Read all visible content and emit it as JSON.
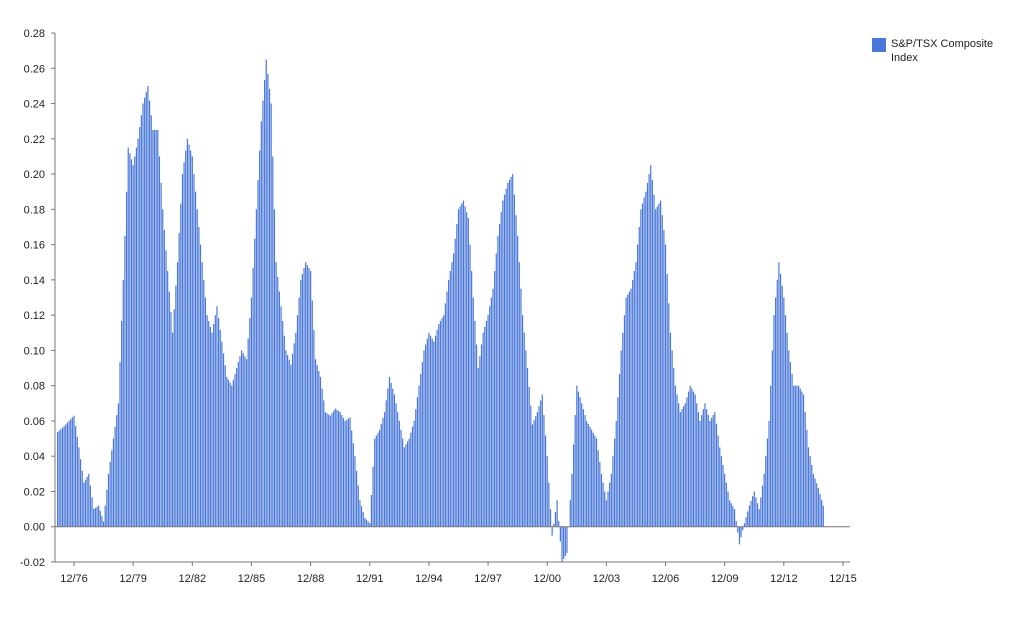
{
  "chart_data": {
    "type": "bar",
    "title": "",
    "xlabel": "",
    "ylabel": "",
    "ylim": [
      -0.02,
      0.28
    ],
    "yticks": [
      "0.28",
      "0.26",
      "0.24",
      "0.22",
      "0.20",
      "0.18",
      "0.16",
      "0.14",
      "0.12",
      "0.10",
      "0.08",
      "0.06",
      "0.04",
      "0.02",
      "0.00",
      "-0.02"
    ],
    "ytick_values": [
      0.28,
      0.26,
      0.24,
      0.22,
      0.2,
      0.18,
      0.16,
      0.14,
      0.12,
      0.1,
      0.08,
      0.06,
      0.04,
      0.02,
      0.0,
      -0.02
    ],
    "xticks": [
      "12/76",
      "12/79",
      "12/82",
      "12/85",
      "12/88",
      "12/91",
      "12/94",
      "12/97",
      "12/00",
      "12/03",
      "12/06",
      "12/09",
      "12/12",
      "12/15"
    ],
    "grid": false,
    "legend_position": "top-right",
    "series": [
      {
        "name": "S&P/TSX Composite Index",
        "color": "#4a78d8",
        "anchors": [
          [
            "1975-12",
            0.052
          ],
          [
            "1976-06",
            0.057
          ],
          [
            "1976-12",
            0.063
          ],
          [
            "1977-03",
            0.045
          ],
          [
            "1977-06",
            0.025
          ],
          [
            "1977-09",
            0.03
          ],
          [
            "1977-12",
            0.01
          ],
          [
            "1978-03",
            0.012
          ],
          [
            "1978-06",
            0.003
          ],
          [
            "1978-09",
            0.03
          ],
          [
            "1978-12",
            0.05
          ],
          [
            "1979-03",
            0.07
          ],
          [
            "1979-06",
            0.14
          ],
          [
            "1979-09",
            0.215
          ],
          [
            "1979-12",
            0.205
          ],
          [
            "1980-03",
            0.22
          ],
          [
            "1980-06",
            0.24
          ],
          [
            "1980-09",
            0.25
          ],
          [
            "1980-12",
            0.225
          ],
          [
            "1981-03",
            0.225
          ],
          [
            "1981-06",
            0.18
          ],
          [
            "1981-09",
            0.145
          ],
          [
            "1981-12",
            0.11
          ],
          [
            "1982-03",
            0.15
          ],
          [
            "1982-06",
            0.2
          ],
          [
            "1982-09",
            0.22
          ],
          [
            "1982-12",
            0.21
          ],
          [
            "1983-03",
            0.18
          ],
          [
            "1983-06",
            0.15
          ],
          [
            "1983-09",
            0.12
          ],
          [
            "1983-12",
            0.11
          ],
          [
            "1984-03",
            0.125
          ],
          [
            "1984-06",
            0.105
          ],
          [
            "1984-09",
            0.085
          ],
          [
            "1984-12",
            0.08
          ],
          [
            "1985-03",
            0.09
          ],
          [
            "1985-06",
            0.1
          ],
          [
            "1985-09",
            0.095
          ],
          [
            "1985-12",
            0.13
          ],
          [
            "1986-03",
            0.18
          ],
          [
            "1986-06",
            0.23
          ],
          [
            "1986-09",
            0.265
          ],
          [
            "1986-12",
            0.24
          ],
          [
            "1987-03",
            0.15
          ],
          [
            "1987-06",
            0.125
          ],
          [
            "1987-09",
            0.1
          ],
          [
            "1987-12",
            0.092
          ],
          [
            "1988-03",
            0.11
          ],
          [
            "1988-06",
            0.14
          ],
          [
            "1988-09",
            0.15
          ],
          [
            "1988-12",
            0.145
          ],
          [
            "1989-03",
            0.095
          ],
          [
            "1989-06",
            0.085
          ],
          [
            "1989-09",
            0.065
          ],
          [
            "1989-12",
            0.063
          ],
          [
            "1990-03",
            0.067
          ],
          [
            "1990-06",
            0.065
          ],
          [
            "1990-09",
            0.06
          ],
          [
            "1990-12",
            0.062
          ],
          [
            "1991-03",
            0.04
          ],
          [
            "1991-06",
            0.015
          ],
          [
            "1991-09",
            0.005
          ],
          [
            "1991-12",
            0.002
          ],
          [
            "1992-03",
            0.05
          ],
          [
            "1992-06",
            0.055
          ],
          [
            "1992-09",
            0.065
          ],
          [
            "1992-12",
            0.085
          ],
          [
            "1993-03",
            0.075
          ],
          [
            "1993-06",
            0.06
          ],
          [
            "1993-09",
            0.045
          ],
          [
            "1993-12",
            0.05
          ],
          [
            "1994-03",
            0.06
          ],
          [
            "1994-06",
            0.08
          ],
          [
            "1994-09",
            0.1
          ],
          [
            "1994-12",
            0.11
          ],
          [
            "1995-03",
            0.105
          ],
          [
            "1995-06",
            0.115
          ],
          [
            "1995-09",
            0.12
          ],
          [
            "1995-12",
            0.14
          ],
          [
            "1996-03",
            0.155
          ],
          [
            "1996-06",
            0.18
          ],
          [
            "1996-09",
            0.185
          ],
          [
            "1996-12",
            0.175
          ],
          [
            "1997-03",
            0.13
          ],
          [
            "1997-06",
            0.09
          ],
          [
            "1997-09",
            0.11
          ],
          [
            "1997-12",
            0.12
          ],
          [
            "1998-03",
            0.135
          ],
          [
            "1998-06",
            0.165
          ],
          [
            "1998-09",
            0.185
          ],
          [
            "1998-12",
            0.195
          ],
          [
            "1999-03",
            0.2
          ],
          [
            "1999-06",
            0.165
          ],
          [
            "1999-09",
            0.12
          ],
          [
            "1999-12",
            0.09
          ],
          [
            "2000-03",
            0.058
          ],
          [
            "2000-06",
            0.065
          ],
          [
            "2000-09",
            0.075
          ],
          [
            "2000-12",
            0.04
          ],
          [
            "2001-03",
            -0.005
          ],
          [
            "2001-06",
            0.015
          ],
          [
            "2001-09",
            -0.02
          ],
          [
            "2001-12",
            -0.015
          ],
          [
            "2002-03",
            0.03
          ],
          [
            "2002-06",
            0.08
          ],
          [
            "2002-09",
            0.07
          ],
          [
            "2002-12",
            0.06
          ],
          [
            "2003-03",
            0.055
          ],
          [
            "2003-06",
            0.05
          ],
          [
            "2003-09",
            0.03
          ],
          [
            "2003-12",
            0.015
          ],
          [
            "2004-03",
            0.03
          ],
          [
            "2004-06",
            0.06
          ],
          [
            "2004-09",
            0.1
          ],
          [
            "2004-12",
            0.13
          ],
          [
            "2005-03",
            0.135
          ],
          [
            "2005-06",
            0.15
          ],
          [
            "2005-09",
            0.18
          ],
          [
            "2005-12",
            0.19
          ],
          [
            "2006-03",
            0.205
          ],
          [
            "2006-06",
            0.18
          ],
          [
            "2006-09",
            0.185
          ],
          [
            "2006-12",
            0.16
          ],
          [
            "2007-03",
            0.11
          ],
          [
            "2007-06",
            0.08
          ],
          [
            "2007-09",
            0.065
          ],
          [
            "2007-12",
            0.07
          ],
          [
            "2008-03",
            0.08
          ],
          [
            "2008-06",
            0.075
          ],
          [
            "2008-09",
            0.06
          ],
          [
            "2008-12",
            0.07
          ],
          [
            "2009-03",
            0.06
          ],
          [
            "2009-06",
            0.065
          ],
          [
            "2009-09",
            0.045
          ],
          [
            "2009-12",
            0.03
          ],
          [
            "2010-03",
            0.015
          ],
          [
            "2010-06",
            0.01
          ],
          [
            "2010-09",
            -0.01
          ],
          [
            "2010-12",
            0.002
          ],
          [
            "2011-03",
            0.012
          ],
          [
            "2011-06",
            0.02
          ],
          [
            "2011-09",
            0.01
          ],
          [
            "2011-12",
            0.03
          ],
          [
            "2012-03",
            0.06
          ],
          [
            "2012-06",
            0.12
          ],
          [
            "2012-09",
            0.15
          ],
          [
            "2012-12",
            0.13
          ],
          [
            "2013-03",
            0.1
          ],
          [
            "2013-06",
            0.08
          ],
          [
            "2013-09",
            0.08
          ],
          [
            "2013-12",
            0.075
          ],
          [
            "2014-03",
            0.045
          ],
          [
            "2014-06",
            0.03
          ],
          [
            "2014-09",
            0.022
          ],
          [
            "2014-12",
            0.012
          ]
        ]
      }
    ]
  }
}
